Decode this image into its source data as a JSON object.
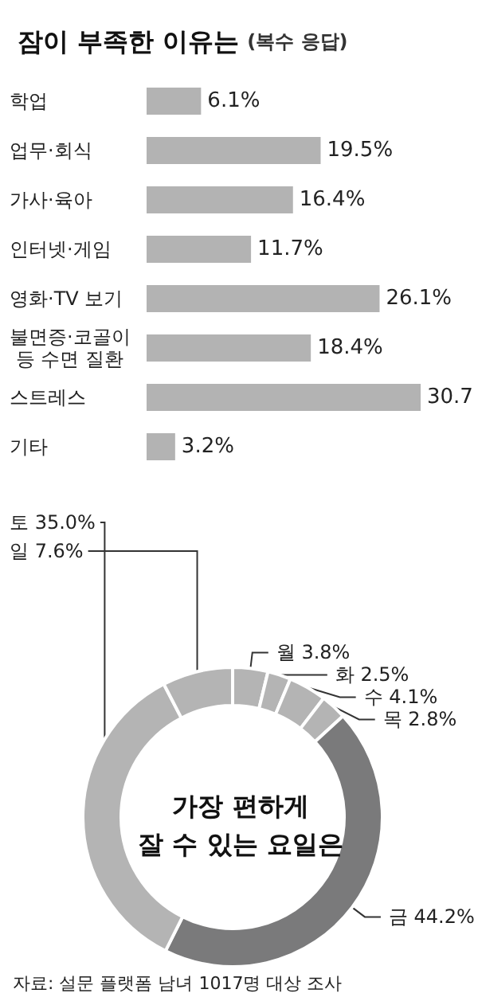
{
  "chart_data": [
    {
      "type": "bar",
      "orientation": "horizontal",
      "title": "잠이 부족한 이유는",
      "subtitle": "(복수 응답)",
      "categories": [
        "학업",
        "업무·회식",
        "가사·육아",
        "인터넷·게임",
        "영화·TV 보기",
        "불면증·코골이 등 수면 질환",
        "스트레스",
        "기타"
      ],
      "values": [
        6.1,
        19.5,
        16.4,
        11.7,
        26.1,
        18.4,
        30.7,
        3.2
      ],
      "value_labels": [
        "6.1%",
        "19.5%",
        "16.4%",
        "11.7%",
        "26.1%",
        "18.4%",
        "30.7",
        "3.2%"
      ],
      "color": "#b3b3b3",
      "legend": false
    },
    {
      "type": "donut",
      "title": "가장 편하게\n잘 수 있는 요일은",
      "categories": [
        "월",
        "화",
        "수",
        "목",
        "금",
        "토",
        "일"
      ],
      "values": [
        3.8,
        2.5,
        4.1,
        2.8,
        44.2,
        35.0,
        7.6
      ],
      "value_labels": [
        "3.8%",
        "2.5%",
        "4.1%",
        "2.8%",
        "44.2%",
        "35.0%",
        "7.6%"
      ],
      "colors": [
        "#b4b4b4",
        "#b4b4b4",
        "#b4b4b4",
        "#b4b4b4",
        "#7a7a7b",
        "#b4b4b4",
        "#b4b4b4"
      ],
      "annotations": [
        "자료: 설문 플랫폼 남녀 1017명 대상 조사"
      ],
      "legend": false
    }
  ]
}
